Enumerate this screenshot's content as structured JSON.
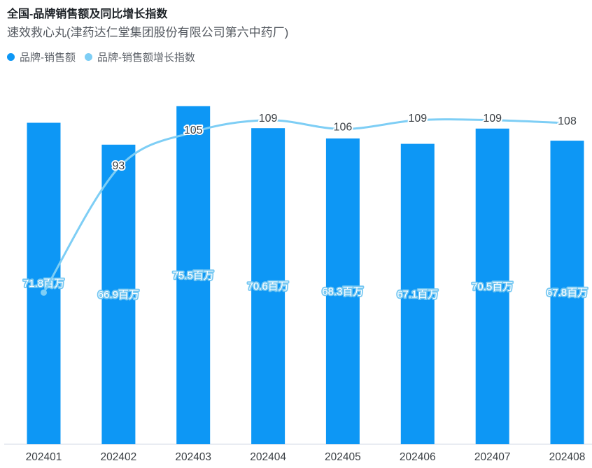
{
  "header": {
    "title": "全国-品牌销售额及同比增长指数",
    "subtitle": "速效救心丸(津药达仁堂集团股份有限公司第六中药厂)"
  },
  "legend": {
    "items": [
      {
        "label": "品牌-销售额",
        "color": "#0d97f5"
      },
      {
        "label": "品牌-销售额增长指数",
        "color": "#7ecef5"
      }
    ]
  },
  "colors": {
    "bar": "#0d97f5",
    "line": "#7ecef5",
    "line_start_dot": "#7ecef5",
    "bar_label_text": "#ffffff",
    "bar_label_halo": "#74c7f2",
    "line_label_text": "#3b4045",
    "axis_line": "#e9ecf2",
    "tick_text": "#3b4045"
  },
  "chart_data": {
    "type": "bar+line combo",
    "title": "全国-品牌销售额及同比增长指数",
    "subtitle": "速效救心丸(津药达仁堂集团股份有限公司第六中药厂)",
    "categories": [
      "202401",
      "202402",
      "202403",
      "202404",
      "202405",
      "202406",
      "202407",
      "202408"
    ],
    "series": [
      {
        "name": "品牌-销售额",
        "type": "bar",
        "unit": "百万",
        "values": [
          71.8,
          66.9,
          75.5,
          70.6,
          68.3,
          67.1,
          70.5,
          67.8
        ],
        "labels": [
          "71.8百万",
          "66.9百万",
          "75.5百万",
          "70.6百万",
          "68.3百万",
          "67.1百万",
          "70.5百万",
          "67.8百万"
        ]
      },
      {
        "name": "品牌-销售额增长指数",
        "type": "line",
        "values": [
          51,
          93,
          105,
          109,
          106,
          109,
          109,
          108
        ],
        "labels": [
          "",
          "93",
          "105",
          "109",
          "106",
          "109",
          "109",
          "108"
        ],
        "first_value_estimated": true
      }
    ],
    "xlabel": "",
    "ylabel": "",
    "legend_position": "top-left",
    "grid": false,
    "y_axes_hidden": true
  }
}
